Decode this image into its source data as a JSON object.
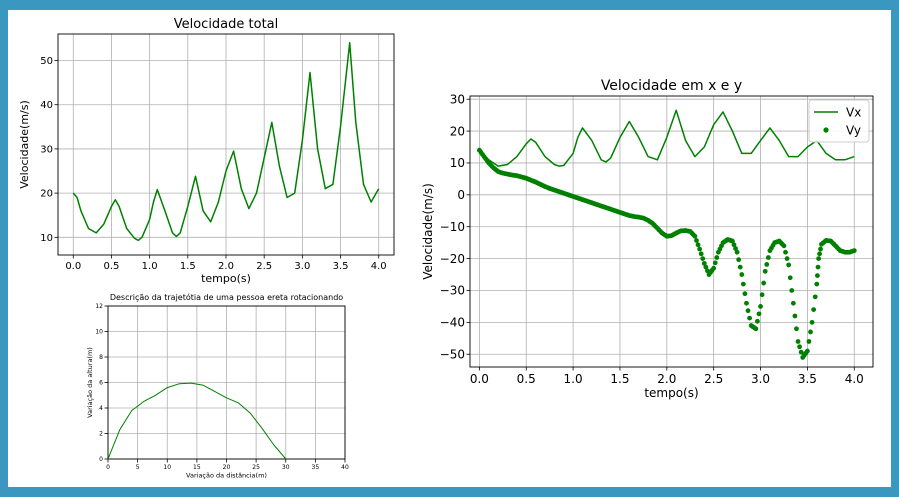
{
  "colors": {
    "line": "#008000",
    "frame": "#3a97bf"
  },
  "chart_data": [
    {
      "type": "line",
      "title": "Velocidade total",
      "xlabel": "tempo(s)",
      "ylabel": "Velocidade(m/s)",
      "xlim": [
        -0.2,
        4.2
      ],
      "ylim": [
        6,
        56
      ],
      "xticks": [
        "0.0",
        "0.5",
        "1.0",
        "1.5",
        "2.0",
        "2.5",
        "3.0",
        "3.5",
        "4.0"
      ],
      "yticks": [
        "10",
        "20",
        "30",
        "40",
        "50"
      ],
      "grid": true,
      "series": [
        {
          "x": [
            0.0,
            0.05,
            0.1,
            0.2,
            0.3,
            0.4,
            0.5,
            0.55,
            0.6,
            0.7,
            0.8,
            0.85,
            0.9,
            1.0,
            1.05,
            1.1,
            1.2,
            1.3,
            1.35,
            1.4,
            1.5,
            1.6,
            1.7,
            1.8,
            1.9,
            2.0,
            2.1,
            2.2,
            2.3,
            2.4,
            2.5,
            2.6,
            2.7,
            2.8,
            2.9,
            3.0,
            3.1,
            3.2,
            3.3,
            3.4,
            3.5,
            3.62,
            3.7,
            3.8,
            3.9,
            4.0
          ],
          "y": [
            20,
            19,
            16,
            12,
            11,
            13,
            17,
            18.5,
            17,
            12,
            9.8,
            9.3,
            10,
            14,
            18,
            20.8,
            16,
            11,
            10.2,
            11,
            17,
            23.8,
            16,
            13.5,
            18,
            25,
            29.5,
            21,
            16.5,
            20,
            28,
            36,
            26,
            19,
            20,
            32,
            47.3,
            30,
            21,
            22,
            35,
            54,
            36,
            22,
            18,
            21
          ]
        }
      ]
    },
    {
      "type": "line",
      "title": "Descrição da trajetótia de uma pessoa ereta rotacionando",
      "xlabel": "Variação da distância(m)",
      "ylabel": "Variação da altura(m)",
      "xlim": [
        0,
        40
      ],
      "ylim": [
        0,
        12
      ],
      "xticks": [
        "0",
        "5",
        "10",
        "15",
        "20",
        "25",
        "30",
        "35",
        "40"
      ],
      "yticks": [
        "0",
        "2",
        "4",
        "6",
        "8",
        "10",
        "12"
      ],
      "grid": true,
      "series": [
        {
          "x": [
            0,
            2,
            4,
            6,
            8,
            10,
            12,
            14,
            16,
            18,
            20,
            22,
            24,
            26,
            28,
            30
          ],
          "y": [
            0,
            2.3,
            3.8,
            4.5,
            5.0,
            5.6,
            5.9,
            5.95,
            5.8,
            5.3,
            4.8,
            4.4,
            3.6,
            2.4,
            1.1,
            0
          ]
        }
      ]
    },
    {
      "type": "line",
      "title": "Velocidade em x e y",
      "xlabel": "tempo(s)",
      "ylabel": "Velocidade(m/s)",
      "xlim": [
        -0.1,
        4.2
      ],
      "ylim": [
        -54,
        31
      ],
      "xticks": [
        "0.0",
        "0.5",
        "1.0",
        "1.5",
        "2.0",
        "2.5",
        "3.0",
        "3.5",
        "4.0"
      ],
      "yticks": [
        "30",
        "20",
        "10",
        "0",
        "−10",
        "−20",
        "−30",
        "−40",
        "−50"
      ],
      "grid": true,
      "legend": "top-right",
      "series": [
        {
          "name": "Vx",
          "style": "line",
          "x": [
            0.0,
            0.1,
            0.2,
            0.3,
            0.4,
            0.5,
            0.55,
            0.6,
            0.7,
            0.8,
            0.85,
            0.9,
            1.0,
            1.05,
            1.1,
            1.2,
            1.3,
            1.35,
            1.4,
            1.5,
            1.6,
            1.7,
            1.8,
            1.9,
            2.0,
            2.1,
            2.2,
            2.3,
            2.4,
            2.5,
            2.6,
            2.7,
            2.8,
            2.9,
            3.0,
            3.1,
            3.2,
            3.3,
            3.4,
            3.5,
            3.6,
            3.7,
            3.8,
            3.9,
            4.0
          ],
          "y": [
            14,
            11,
            9,
            9.5,
            12,
            16,
            17.5,
            16.5,
            12,
            9.5,
            9,
            9.2,
            13,
            18,
            21,
            17,
            11,
            10.3,
            11.5,
            18,
            23,
            18,
            12,
            11,
            18,
            26.5,
            17,
            12,
            15,
            22,
            26,
            20,
            13,
            13,
            17,
            21,
            17,
            12,
            12,
            15,
            17,
            13,
            11,
            11,
            12
          ]
        },
        {
          "name": "Vy",
          "style": "dots",
          "x": [
            0.0,
            0.05,
            0.1,
            0.15,
            0.2,
            0.25,
            0.3,
            0.35,
            0.4,
            0.45,
            0.5,
            0.55,
            0.6,
            0.65,
            0.7,
            0.75,
            0.8,
            0.85,
            0.9,
            0.95,
            1.0,
            1.05,
            1.1,
            1.15,
            1.2,
            1.25,
            1.3,
            1.35,
            1.4,
            1.45,
            1.5,
            1.55,
            1.6,
            1.65,
            1.7,
            1.75,
            1.8,
            1.85,
            1.9,
            1.95,
            2.0,
            2.05,
            2.1,
            2.15,
            2.2,
            2.25,
            2.3,
            2.35,
            2.4,
            2.45,
            2.5,
            2.55,
            2.6,
            2.65,
            2.7,
            2.75,
            2.8,
            2.85,
            2.9,
            2.95,
            3.0,
            3.05,
            3.1,
            3.15,
            3.2,
            3.25,
            3.3,
            3.35,
            3.4,
            3.45,
            3.5,
            3.55,
            3.6,
            3.62,
            3.65,
            3.7,
            3.75,
            3.8,
            3.85,
            3.9,
            3.95,
            4.0
          ],
          "y": [
            14,
            12,
            10,
            8.5,
            7.3,
            6.8,
            6.5,
            6.2,
            6,
            5.6,
            5.2,
            4.6,
            4,
            3.3,
            2.6,
            2,
            1.5,
            1,
            0.5,
            0,
            -0.5,
            -1,
            -1.5,
            -2,
            -2.5,
            -3,
            -3.5,
            -4,
            -4.5,
            -5,
            -5.5,
            -6,
            -6.5,
            -6.8,
            -7,
            -7.3,
            -8,
            -9,
            -10.5,
            -12,
            -13,
            -12.8,
            -12,
            -11.3,
            -11.2,
            -11.5,
            -13,
            -17,
            -21.5,
            -25,
            -23,
            -18,
            -15,
            -14,
            -14.5,
            -18,
            -25,
            -34,
            -41,
            -42,
            -35,
            -24,
            -17.5,
            -15,
            -14.5,
            -16,
            -22,
            -34,
            -46,
            -51,
            -49,
            -40,
            -28,
            -20,
            -15.5,
            -14.3,
            -14.5,
            -16,
            -17.5,
            -18,
            -18,
            -17.5
          ]
        }
      ]
    }
  ]
}
